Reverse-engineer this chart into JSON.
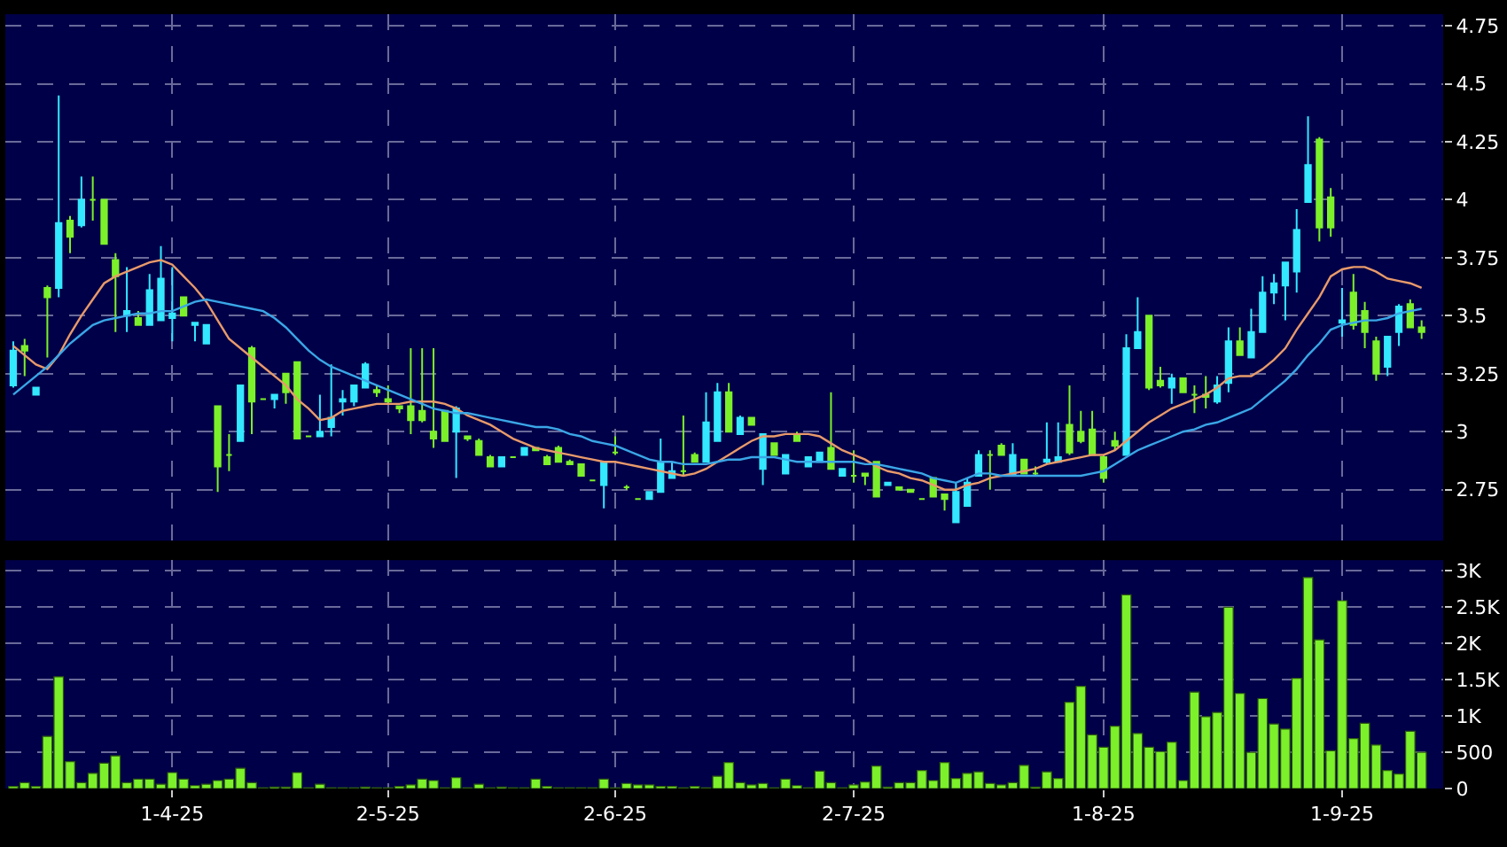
{
  "chart_data": [
    {
      "type": "candlestick",
      "categories": [
        null,
        null,
        null,
        null,
        null,
        null,
        null,
        null,
        null,
        null,
        null,
        null,
        null,
        null,
        "1-4-25",
        null,
        null,
        null,
        null,
        null,
        null,
        null,
        null,
        null,
        null,
        null,
        null,
        null,
        null,
        null,
        null,
        null,
        null,
        "2-5-25",
        null,
        null,
        null,
        null,
        null,
        null,
        null,
        null,
        null,
        null,
        null,
        null,
        null,
        null,
        null,
        null,
        null,
        null,
        null,
        "2-6-25",
        null,
        null,
        null,
        null,
        null,
        null,
        null,
        null,
        null,
        null,
        null,
        null,
        null,
        null,
        null,
        null,
        null,
        null,
        null,
        null,
        "2-7-25",
        null,
        null,
        null,
        null,
        null,
        null,
        null,
        null,
        null,
        null,
        null,
        null,
        null,
        null,
        null,
        null,
        null,
        null,
        null,
        null,
        null,
        "1-8-25",
        null,
        null,
        null,
        null,
        null,
        null,
        null,
        null,
        null,
        null,
        null,
        null,
        null,
        null,
        null,
        null,
        null,
        null,
        null,
        null,
        "1-9-25",
        null,
        null,
        null,
        null,
        null,
        null,
        null
      ],
      "ohlc": [
        [
          3.2,
          3.39,
          3.19,
          3.35
        ],
        [
          3.37,
          3.4,
          3.24,
          3.35
        ],
        [
          3.16,
          3.19,
          3.16,
          3.19
        ],
        [
          3.62,
          3.63,
          3.32,
          3.58
        ],
        [
          3.62,
          4.45,
          3.58,
          3.9
        ],
        [
          3.91,
          3.93,
          3.77,
          3.84
        ],
        [
          3.89,
          4.1,
          3.88,
          4.0
        ],
        [
          4.0,
          4.1,
          3.91,
          4.0
        ],
        [
          4.0,
          4.0,
          3.81,
          3.81
        ],
        [
          3.74,
          3.77,
          3.43,
          3.67
        ],
        [
          3.5,
          3.71,
          3.43,
          3.52
        ],
        [
          3.49,
          3.52,
          3.46,
          3.46
        ],
        [
          3.46,
          3.68,
          3.46,
          3.61
        ],
        [
          3.48,
          3.8,
          3.48,
          3.66
        ],
        [
          3.49,
          3.71,
          3.39,
          3.51
        ],
        [
          3.58,
          3.58,
          3.5,
          3.5
        ],
        [
          3.46,
          3.47,
          3.39,
          3.47
        ],
        [
          3.38,
          3.46,
          3.38,
          3.46
        ],
        [
          3.11,
          3.11,
          2.74,
          2.85
        ],
        [
          2.9,
          2.99,
          2.83,
          2.9
        ],
        [
          2.96,
          3.2,
          2.96,
          3.2
        ],
        [
          3.36,
          3.37,
          2.99,
          3.13
        ],
        [
          3.14,
          3.14,
          3.14,
          3.14
        ],
        [
          3.14,
          3.16,
          3.1,
          3.16
        ],
        [
          3.25,
          3.25,
          3.12,
          3.17
        ],
        [
          3.3,
          3.3,
          2.97,
          2.97
        ],
        [
          2.98,
          2.98,
          2.98,
          2.98
        ],
        [
          2.98,
          3.16,
          2.98,
          3.0
        ],
        [
          3.02,
          3.29,
          2.98,
          3.06
        ],
        [
          3.13,
          3.18,
          3.07,
          3.14
        ],
        [
          3.13,
          3.2,
          3.11,
          3.2
        ],
        [
          3.19,
          3.3,
          3.19,
          3.29
        ],
        [
          3.18,
          3.2,
          3.15,
          3.17
        ],
        [
          3.14,
          3.2,
          3.12,
          3.13
        ],
        [
          3.11,
          3.11,
          3.08,
          3.1
        ],
        [
          3.11,
          3.36,
          2.99,
          3.05
        ],
        [
          3.09,
          3.36,
          3.04,
          3.05
        ],
        [
          3.0,
          3.36,
          2.93,
          2.97
        ],
        [
          3.09,
          3.09,
          2.96,
          2.96
        ],
        [
          3.0,
          3.11,
          2.8,
          3.1
        ],
        [
          2.98,
          2.98,
          2.96,
          2.97
        ],
        [
          2.96,
          2.97,
          2.9,
          2.9
        ],
        [
          2.89,
          2.9,
          2.85,
          2.85
        ],
        [
          2.85,
          2.89,
          2.85,
          2.89
        ],
        [
          2.89,
          2.89,
          2.89,
          2.89
        ],
        [
          2.9,
          2.93,
          2.9,
          2.93
        ],
        [
          2.93,
          2.93,
          2.92,
          2.92
        ],
        [
          2.89,
          2.9,
          2.86,
          2.86
        ],
        [
          2.93,
          2.94,
          2.87,
          2.87
        ],
        [
          2.87,
          2.88,
          2.86,
          2.86
        ],
        [
          2.86,
          2.86,
          2.81,
          2.81
        ],
        [
          2.79,
          2.79,
          2.79,
          2.79
        ],
        [
          2.77,
          2.87,
          2.67,
          2.87
        ],
        [
          2.91,
          2.98,
          2.9,
          2.91
        ],
        [
          2.76,
          2.77,
          2.75,
          2.76
        ],
        [
          2.71,
          2.71,
          2.71,
          2.71
        ],
        [
          2.71,
          2.74,
          2.71,
          2.74
        ],
        [
          2.74,
          2.97,
          2.74,
          2.87
        ],
        [
          2.8,
          2.87,
          2.8,
          2.83
        ],
        [
          2.83,
          3.07,
          2.81,
          2.83
        ],
        [
          2.9,
          2.91,
          2.87,
          2.87
        ],
        [
          2.87,
          3.17,
          2.87,
          3.04
        ],
        [
          2.96,
          3.21,
          2.96,
          3.17
        ],
        [
          3.17,
          3.21,
          3.0,
          3.0
        ],
        [
          2.99,
          3.07,
          2.99,
          3.06
        ],
        [
          3.06,
          3.06,
          3.03,
          3.03
        ],
        [
          2.84,
          2.99,
          2.77,
          2.99
        ],
        [
          2.95,
          2.95,
          2.9,
          2.9
        ],
        [
          2.82,
          2.9,
          2.82,
          2.9
        ],
        [
          2.99,
          3.0,
          2.96,
          2.96
        ],
        [
          2.85,
          2.89,
          2.85,
          2.89
        ],
        [
          2.87,
          2.91,
          2.87,
          2.91
        ],
        [
          2.93,
          3.17,
          2.84,
          2.84
        ],
        [
          2.81,
          2.84,
          2.81,
          2.84
        ],
        [
          2.81,
          2.92,
          2.78,
          2.81
        ],
        [
          2.82,
          2.82,
          2.77,
          2.81
        ],
        [
          2.87,
          2.87,
          2.72,
          2.72
        ],
        [
          2.77,
          2.78,
          2.77,
          2.78
        ],
        [
          2.76,
          2.76,
          2.75,
          2.75
        ],
        [
          2.75,
          2.75,
          2.74,
          2.74
        ],
        [
          2.71,
          2.71,
          2.71,
          2.71
        ],
        [
          2.8,
          2.8,
          2.72,
          2.72
        ],
        [
          2.73,
          2.73,
          2.66,
          2.71
        ],
        [
          2.61,
          2.78,
          2.61,
          2.74
        ],
        [
          2.68,
          2.8,
          2.68,
          2.78
        ],
        [
          2.81,
          2.92,
          2.81,
          2.9
        ],
        [
          2.9,
          2.92,
          2.75,
          2.9
        ],
        [
          2.94,
          2.95,
          2.9,
          2.9
        ],
        [
          2.81,
          2.95,
          2.81,
          2.9
        ],
        [
          2.88,
          2.88,
          2.82,
          2.82
        ],
        [
          2.82,
          2.85,
          2.81,
          2.82
        ],
        [
          2.87,
          3.04,
          2.86,
          2.88
        ],
        [
          2.87,
          3.04,
          2.87,
          2.89
        ],
        [
          3.03,
          3.2,
          2.9,
          2.91
        ],
        [
          3.0,
          3.09,
          2.95,
          2.96
        ],
        [
          3.01,
          3.09,
          2.9,
          2.9
        ],
        [
          2.89,
          2.9,
          2.78,
          2.8
        ],
        [
          2.96,
          3.0,
          2.92,
          2.94
        ],
        [
          2.9,
          3.42,
          2.9,
          3.36
        ],
        [
          3.36,
          3.58,
          3.36,
          3.43
        ],
        [
          3.5,
          3.5,
          3.18,
          3.19
        ],
        [
          3.22,
          3.28,
          3.19,
          3.2
        ],
        [
          3.19,
          3.25,
          3.12,
          3.23
        ],
        [
          3.23,
          3.23,
          3.17,
          3.17
        ],
        [
          3.16,
          3.2,
          3.08,
          3.16
        ],
        [
          3.16,
          3.24,
          3.1,
          3.15
        ],
        [
          3.13,
          3.24,
          3.12,
          3.2
        ],
        [
          3.21,
          3.45,
          3.17,
          3.39
        ],
        [
          3.39,
          3.45,
          3.33,
          3.33
        ],
        [
          3.32,
          3.53,
          3.32,
          3.43
        ],
        [
          3.43,
          3.67,
          3.43,
          3.6
        ],
        [
          3.6,
          3.68,
          3.55,
          3.64
        ],
        [
          3.63,
          3.73,
          3.48,
          3.73
        ],
        [
          3.69,
          3.96,
          3.6,
          3.87
        ],
        [
          3.99,
          4.36,
          3.99,
          4.15
        ],
        [
          4.26,
          4.27,
          3.82,
          3.88
        ],
        [
          4.01,
          4.05,
          3.84,
          3.88
        ],
        [
          3.47,
          3.62,
          3.41,
          3.48
        ],
        [
          3.6,
          3.68,
          3.44,
          3.46
        ],
        [
          3.52,
          3.56,
          3.36,
          3.43
        ],
        [
          3.39,
          3.41,
          3.22,
          3.25
        ],
        [
          3.28,
          3.41,
          3.24,
          3.41
        ],
        [
          3.43,
          3.55,
          3.37,
          3.54
        ],
        [
          3.55,
          3.57,
          3.45,
          3.45
        ],
        [
          3.45,
          3.48,
          3.4,
          3.43
        ]
      ],
      "colors": [
        "#33e8ff",
        "#7cf02a",
        "#33e8ff",
        "#7cf02a",
        "#33e8ff",
        "#7cf02a",
        "#33e8ff",
        "#7cf02a",
        "#7cf02a",
        "#7cf02a",
        "#33e8ff",
        "#7cf02a",
        "#33e8ff",
        "#33e8ff",
        "#33e8ff",
        "#7cf02a",
        "#33e8ff",
        "#33e8ff",
        "#7cf02a",
        "#7cf02a",
        "#33e8ff",
        "#7cf02a",
        "#7cf02a",
        "#33e8ff",
        "#7cf02a",
        "#7cf02a",
        "#7cf02a",
        "#33e8ff",
        "#33e8ff",
        "#33e8ff",
        "#33e8ff",
        "#33e8ff",
        "#7cf02a",
        "#7cf02a",
        "#7cf02a",
        "#7cf02a",
        "#7cf02a",
        "#7cf02a",
        "#7cf02a",
        "#33e8ff",
        "#7cf02a",
        "#7cf02a",
        "#7cf02a",
        "#33e8ff",
        "#7cf02a",
        "#33e8ff",
        "#7cf02a",
        "#7cf02a",
        "#7cf02a",
        "#7cf02a",
        "#7cf02a",
        "#7cf02a",
        "#33e8ff",
        "#7cf02a",
        "#7cf02a",
        "#7cf02a",
        "#33e8ff",
        "#33e8ff",
        "#33e8ff",
        "#7cf02a",
        "#7cf02a",
        "#33e8ff",
        "#33e8ff",
        "#7cf02a",
        "#33e8ff",
        "#7cf02a",
        "#33e8ff",
        "#7cf02a",
        "#33e8ff",
        "#7cf02a",
        "#33e8ff",
        "#33e8ff",
        "#7cf02a",
        "#33e8ff",
        "#7cf02a",
        "#7cf02a",
        "#7cf02a",
        "#33e8ff",
        "#7cf02a",
        "#7cf02a",
        "#7cf02a",
        "#7cf02a",
        "#7cf02a",
        "#33e8ff",
        "#33e8ff",
        "#33e8ff",
        "#7cf02a",
        "#7cf02a",
        "#33e8ff",
        "#7cf02a",
        "#7cf02a",
        "#33e8ff",
        "#33e8ff",
        "#7cf02a",
        "#7cf02a",
        "#7cf02a",
        "#7cf02a",
        "#7cf02a",
        "#33e8ff",
        "#33e8ff",
        "#7cf02a",
        "#7cf02a",
        "#33e8ff",
        "#7cf02a",
        "#7cf02a",
        "#7cf02a",
        "#33e8ff",
        "#33e8ff",
        "#7cf02a",
        "#33e8ff",
        "#33e8ff",
        "#33e8ff",
        "#33e8ff",
        "#33e8ff",
        "#33e8ff",
        "#7cf02a",
        "#7cf02a",
        "#33e8ff",
        "#7cf02a",
        "#7cf02a",
        "#7cf02a",
        "#33e8ff",
        "#33e8ff",
        "#7cf02a",
        "#7cf02a"
      ],
      "series": [
        {
          "type": "line",
          "color": "#e89a6a",
          "values": [
            3.37,
            3.33,
            3.29,
            3.27,
            3.33,
            3.42,
            3.5,
            3.57,
            3.64,
            3.67,
            3.69,
            3.71,
            3.73,
            3.74,
            3.72,
            3.67,
            3.62,
            3.56,
            3.48,
            3.4,
            3.36,
            3.32,
            3.28,
            3.24,
            3.2,
            3.14,
            3.1,
            3.05,
            3.06,
            3.09,
            3.1,
            3.11,
            3.12,
            3.12,
            3.12,
            3.13,
            3.13,
            3.13,
            3.12,
            3.1,
            3.07,
            3.05,
            3.03,
            3.0,
            2.97,
            2.95,
            2.93,
            2.92,
            2.91,
            2.9,
            2.89,
            2.88,
            2.87,
            2.87,
            2.86,
            2.85,
            2.84,
            2.83,
            2.82,
            2.81,
            2.82,
            2.84,
            2.87,
            2.9,
            2.93,
            2.96,
            2.98,
            2.98,
            2.99,
            2.99,
            2.99,
            2.98,
            2.95,
            2.92,
            2.9,
            2.88,
            2.85,
            2.83,
            2.82,
            2.8,
            2.79,
            2.77,
            2.75,
            2.75,
            2.77,
            2.78,
            2.8,
            2.81,
            2.82,
            2.83,
            2.84,
            2.86,
            2.87,
            2.88,
            2.89,
            2.9,
            2.9,
            2.92,
            2.96,
            3.0,
            3.04,
            3.07,
            3.1,
            3.12,
            3.14,
            3.16,
            3.19,
            3.23,
            3.24,
            3.24,
            3.27,
            3.31,
            3.36,
            3.44,
            3.51,
            3.58,
            3.67,
            3.7,
            3.71,
            3.71,
            3.69,
            3.66,
            3.65,
            3.64,
            3.62
          ]
        },
        {
          "type": "line",
          "color": "#3aa6e6",
          "values": [
            3.16,
            3.2,
            3.24,
            3.28,
            3.33,
            3.38,
            3.42,
            3.46,
            3.48,
            3.49,
            3.5,
            3.51,
            3.51,
            3.52,
            3.52,
            3.54,
            3.56,
            3.57,
            3.56,
            3.55,
            3.54,
            3.53,
            3.52,
            3.49,
            3.45,
            3.4,
            3.35,
            3.31,
            3.28,
            3.26,
            3.24,
            3.22,
            3.2,
            3.18,
            3.16,
            3.14,
            3.12,
            3.1,
            3.09,
            3.08,
            3.08,
            3.07,
            3.06,
            3.05,
            3.04,
            3.03,
            3.02,
            3.02,
            3.01,
            2.99,
            2.98,
            2.96,
            2.95,
            2.94,
            2.92,
            2.9,
            2.88,
            2.87,
            2.87,
            2.86,
            2.86,
            2.86,
            2.87,
            2.88,
            2.88,
            2.89,
            2.89,
            2.89,
            2.88,
            2.87,
            2.87,
            2.87,
            2.87,
            2.87,
            2.87,
            2.86,
            2.86,
            2.85,
            2.84,
            2.83,
            2.82,
            2.8,
            2.79,
            2.78,
            2.8,
            2.82,
            2.82,
            2.81,
            2.81,
            2.81,
            2.81,
            2.81,
            2.81,
            2.81,
            2.81,
            2.82,
            2.83,
            2.86,
            2.89,
            2.92,
            2.94,
            2.96,
            2.98,
            3.0,
            3.01,
            3.03,
            3.04,
            3.06,
            3.08,
            3.1,
            3.14,
            3.18,
            3.22,
            3.27,
            3.33,
            3.38,
            3.44,
            3.46,
            3.47,
            3.48,
            3.48,
            3.49,
            3.51,
            3.52,
            3.53
          ]
        }
      ],
      "ylim": [
        2.53,
        4.8
      ],
      "yticks": [
        2.75,
        3,
        3.25,
        3.5,
        3.75,
        4,
        4.25,
        4.5,
        4.75
      ],
      "grid": true,
      "tick_labels": "y"
    },
    {
      "type": "bar",
      "categories": [
        null,
        null,
        null,
        null,
        null,
        null,
        null,
        null,
        null,
        null,
        null,
        null,
        null,
        null,
        "1-4-25",
        null,
        null,
        null,
        null,
        null,
        null,
        null,
        null,
        null,
        null,
        null,
        null,
        null,
        null,
        null,
        null,
        null,
        null,
        "2-5-25",
        null,
        null,
        null,
        null,
        null,
        null,
        null,
        null,
        null,
        null,
        null,
        null,
        null,
        null,
        null,
        null,
        null,
        null,
        null,
        "2-6-25",
        null,
        null,
        null,
        null,
        null,
        null,
        null,
        null,
        null,
        null,
        null,
        null,
        null,
        null,
        null,
        null,
        null,
        null,
        null,
        null,
        "2-7-25",
        null,
        null,
        null,
        null,
        null,
        null,
        null,
        null,
        null,
        null,
        null,
        null,
        null,
        null,
        null,
        null,
        null,
        null,
        null,
        null,
        null,
        "1-8-25",
        null,
        null,
        null,
        null,
        null,
        null,
        null,
        null,
        null,
        null,
        null,
        null,
        null,
        null,
        null,
        null,
        null,
        null,
        null,
        null,
        "1-9-25",
        null,
        null,
        null,
        null,
        null,
        null,
        null
      ],
      "values": [
        30,
        80,
        30,
        720,
        1540,
        370,
        80,
        210,
        350,
        450,
        80,
        130,
        130,
        60,
        220,
        130,
        40,
        60,
        110,
        130,
        280,
        80,
        10,
        20,
        20,
        220,
        10,
        60,
        10,
        10,
        10,
        20,
        10,
        10,
        30,
        50,
        130,
        110,
        10,
        150,
        10,
        60,
        10,
        20,
        10,
        10,
        130,
        30,
        10,
        10,
        10,
        10,
        130,
        10,
        70,
        50,
        50,
        30,
        30,
        10,
        30,
        10,
        170,
        360,
        80,
        50,
        70,
        10,
        130,
        40,
        10,
        240,
        80,
        10,
        50,
        90,
        310,
        20,
        80,
        80,
        250,
        110,
        360,
        140,
        210,
        230,
        70,
        50,
        80,
        320,
        20,
        230,
        140,
        1190,
        1410,
        740,
        570,
        860,
        2670,
        760,
        570,
        510,
        640,
        110,
        1330,
        990,
        1050,
        2500,
        1310,
        500,
        1240,
        890,
        820,
        1520,
        2910,
        2050,
        520,
        2590,
        690,
        900,
        600,
        250,
        200,
        790,
        500
      ],
      "color": "#7cf02a",
      "ylim": [
        0,
        3150
      ],
      "yticks": [
        0,
        500,
        {
          "value": 1000,
          "label": "1K"
        },
        {
          "value": 1500,
          "label": "1.5K"
        },
        {
          "value": 2000,
          "label": "2K"
        },
        {
          "value": 2500,
          "label": "2.5K"
        },
        {
          "value": 3000,
          "label": "3K"
        }
      ],
      "grid": true
    }
  ]
}
